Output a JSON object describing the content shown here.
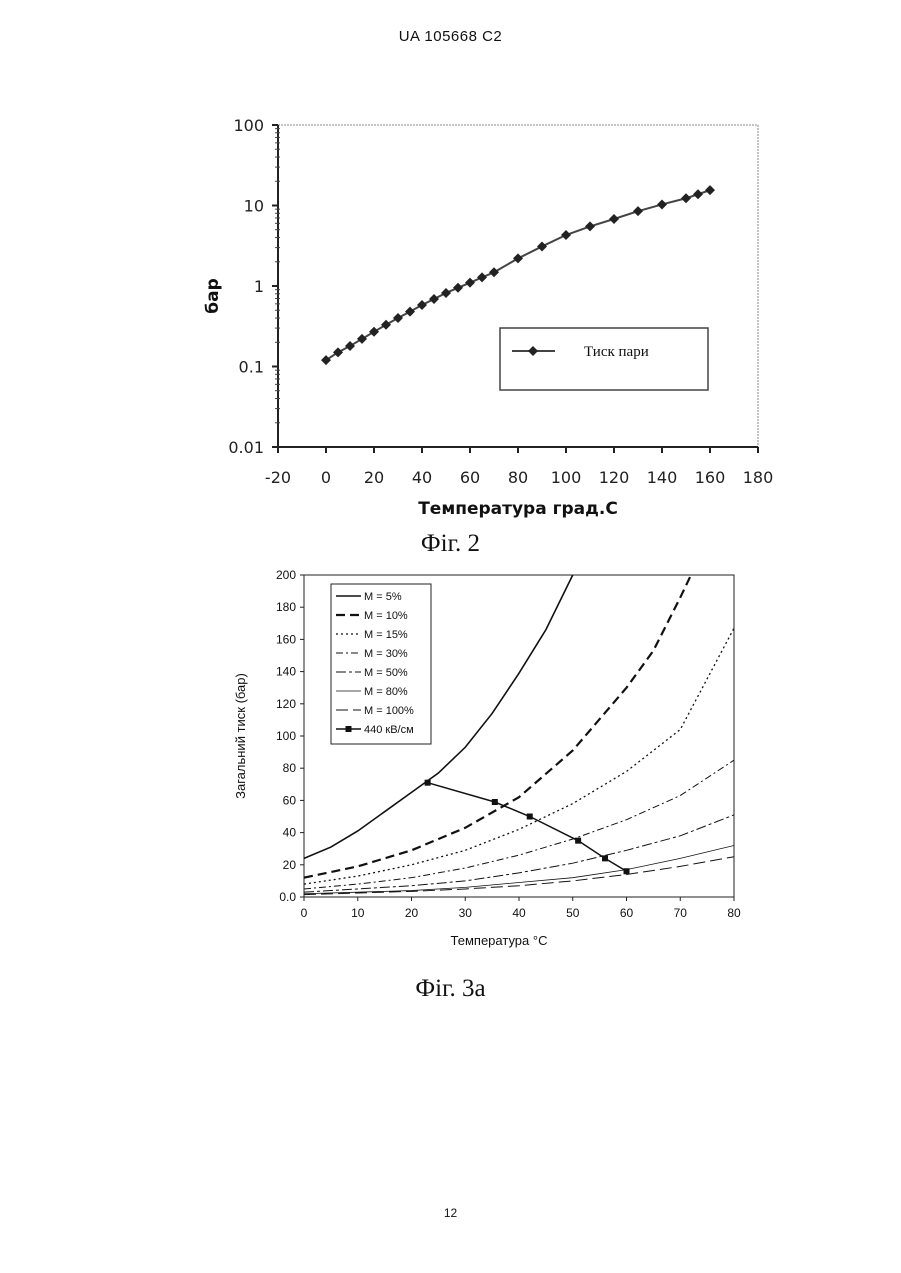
{
  "header": {
    "text": "UA   105668   C2"
  },
  "fig2_caption": "Фіг. 2",
  "fig3a_caption": "Фіг. 3а",
  "page_number": "12",
  "chart_data": [
    {
      "type": "line",
      "xlabel": "Температура град.С",
      "ylabel": "бар",
      "yscale": "log",
      "xlim": [
        -20,
        180
      ],
      "ylim": [
        0.01,
        100
      ],
      "x_ticks": [
        "-20",
        "0",
        "20",
        "40",
        "60",
        "80",
        "100",
        "120",
        "140",
        "160",
        "180"
      ],
      "y_ticks": [
        "0.01",
        "0.1",
        "1",
        "10",
        "100"
      ],
      "legend_position": "bottom-right",
      "grid": false,
      "series": [
        {
          "name": "Тиск пари",
          "marker": "diamond",
          "x": [
            0,
            5,
            10,
            15,
            20,
            25,
            30,
            35,
            40,
            45,
            50,
            55,
            60,
            65,
            70,
            80,
            90,
            100,
            110,
            120,
            130,
            140,
            150,
            155,
            160
          ],
          "y": [
            0.12,
            0.15,
            0.18,
            0.22,
            0.27,
            0.33,
            0.4,
            0.48,
            0.58,
            0.69,
            0.82,
            0.95,
            1.1,
            1.28,
            1.48,
            2.2,
            3.1,
            4.3,
            5.5,
            6.8,
            8.5,
            10.3,
            12.3,
            13.8,
            15.5
          ]
        }
      ]
    },
    {
      "type": "line",
      "xlabel": "Температура °C",
      "ylabel": "Загальний тиск (бар)",
      "xlim": [
        0,
        80
      ],
      "ylim": [
        0,
        200
      ],
      "x_ticks": [
        "0",
        "10",
        "20",
        "30",
        "40",
        "50",
        "60",
        "70",
        "80"
      ],
      "y_ticks": [
        "0.0",
        "20",
        "40",
        "60",
        "80",
        "100",
        "120",
        "140",
        "160",
        "180",
        "200"
      ],
      "legend_position": "top-left",
      "grid": false,
      "series": [
        {
          "name": "M = 5%",
          "style": "solid-thick",
          "x": [
            0,
            5,
            10,
            15,
            20,
            25,
            30,
            35,
            40,
            45,
            50
          ],
          "y": [
            24,
            31,
            41,
            53,
            65,
            77,
            93,
            114,
            139,
            166,
            200
          ]
        },
        {
          "name": "M = 10%",
          "style": "dashed-thick",
          "x": [
            0,
            10,
            20,
            30,
            40,
            50,
            60,
            65,
            70,
            72
          ],
          "y": [
            12,
            19,
            29,
            43,
            62,
            91,
            130,
            153,
            186,
            200
          ]
        },
        {
          "name": "M = 15%",
          "style": "dotted",
          "x": [
            0,
            10,
            20,
            30,
            40,
            50,
            60,
            70,
            80
          ],
          "y": [
            8,
            13,
            20,
            29,
            42,
            58,
            78,
            104,
            167
          ]
        },
        {
          "name": "M = 30%",
          "style": "dashdot",
          "x": [
            0,
            10,
            20,
            30,
            40,
            50,
            60,
            70,
            80
          ],
          "y": [
            5,
            8,
            12,
            18,
            26,
            36,
            48,
            63,
            85
          ]
        },
        {
          "name": "M = 50%",
          "style": "dashdot-long",
          "x": [
            0,
            10,
            20,
            30,
            40,
            50,
            60,
            70,
            80
          ],
          "y": [
            3,
            5,
            7,
            10,
            15,
            21,
            29,
            38,
            51
          ]
        },
        {
          "name": "M = 80%",
          "style": "thin-solid",
          "x": [
            0,
            10,
            20,
            30,
            40,
            50,
            60,
            70,
            80
          ],
          "y": [
            2,
            3,
            4,
            6,
            9,
            12,
            17,
            24,
            32
          ]
        },
        {
          "name": "M = 100%",
          "style": "longdash",
          "x": [
            0,
            10,
            20,
            30,
            40,
            50,
            60,
            70,
            80
          ],
          "y": [
            1.5,
            2.5,
            3.5,
            5,
            7,
            10,
            14,
            19,
            25
          ]
        },
        {
          "name": "440 кВ/см",
          "style": "solid-marker",
          "x": [
            23,
            35.5,
            42,
            51,
            56,
            60
          ],
          "y": [
            71,
            59,
            50,
            35,
            24,
            16
          ]
        }
      ]
    }
  ]
}
